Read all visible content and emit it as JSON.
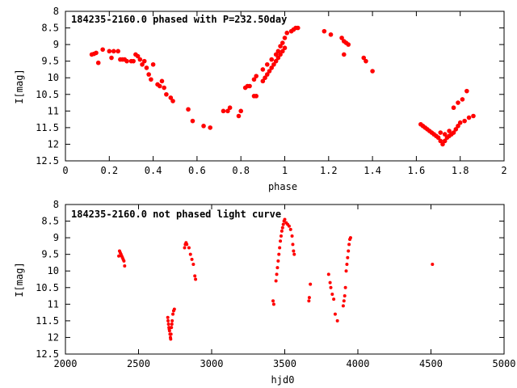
{
  "chart_data": [
    {
      "type": "scatter",
      "title": "184235-2160.0 phased with P=232.50day",
      "xlabel": "phase",
      "ylabel": "I[mag]",
      "xlim": [
        0,
        2
      ],
      "ylim": [
        12.5,
        8
      ],
      "y_inverted": true,
      "grid": false,
      "color": "#ff0000",
      "x_ticks": [
        "0",
        "0.2",
        "0.4",
        "0.6",
        "0.8",
        "1",
        "1.2",
        "1.4",
        "1.6",
        "1.8",
        "2"
      ],
      "y_ticks": [
        "8",
        "8.5",
        "9",
        "9.5",
        "10",
        "10.5",
        "11",
        "11.5",
        "12",
        "12.5"
      ],
      "points": [
        [
          0.12,
          9.3
        ],
        [
          0.13,
          9.28
        ],
        [
          0.14,
          9.25
        ],
        [
          0.15,
          9.55
        ],
        [
          0.17,
          9.15
        ],
        [
          0.2,
          9.2
        ],
        [
          0.21,
          9.4
        ],
        [
          0.22,
          9.2
        ],
        [
          0.24,
          9.2
        ],
        [
          0.25,
          9.45
        ],
        [
          0.26,
          9.45
        ],
        [
          0.27,
          9.45
        ],
        [
          0.28,
          9.5
        ],
        [
          0.3,
          9.5
        ],
        [
          0.31,
          9.5
        ],
        [
          0.32,
          9.3
        ],
        [
          0.33,
          9.35
        ],
        [
          0.34,
          9.45
        ],
        [
          0.35,
          9.6
        ],
        [
          0.36,
          9.5
        ],
        [
          0.37,
          9.7
        ],
        [
          0.38,
          9.9
        ],
        [
          0.39,
          10.05
        ],
        [
          0.4,
          9.6
        ],
        [
          0.42,
          10.2
        ],
        [
          0.43,
          10.25
        ],
        [
          0.44,
          10.1
        ],
        [
          0.45,
          10.3
        ],
        [
          0.46,
          10.5
        ],
        [
          0.48,
          10.6
        ],
        [
          0.49,
          10.7
        ],
        [
          0.56,
          10.95
        ],
        [
          0.58,
          11.3
        ],
        [
          0.63,
          11.45
        ],
        [
          0.66,
          11.5
        ],
        [
          0.72,
          11.0
        ],
        [
          0.74,
          11.0
        ],
        [
          0.75,
          10.9
        ],
        [
          0.79,
          11.15
        ],
        [
          0.8,
          11.0
        ],
        [
          0.82,
          10.3
        ],
        [
          0.83,
          10.25
        ],
        [
          0.84,
          10.25
        ],
        [
          0.86,
          10.05
        ],
        [
          0.87,
          9.95
        ],
        [
          0.86,
          10.55
        ],
        [
          0.87,
          10.55
        ],
        [
          0.9,
          10.1
        ],
        [
          0.91,
          10.0
        ],
        [
          0.92,
          9.9
        ],
        [
          0.93,
          9.8
        ],
        [
          0.94,
          9.7
        ],
        [
          0.95,
          9.6
        ],
        [
          0.96,
          9.5
        ],
        [
          0.97,
          9.4
        ],
        [
          0.98,
          9.3
        ],
        [
          0.99,
          9.2
        ],
        [
          1.0,
          9.1
        ],
        [
          0.9,
          9.75
        ],
        [
          0.92,
          9.6
        ],
        [
          0.94,
          9.45
        ],
        [
          0.96,
          9.3
        ],
        [
          0.97,
          9.2
        ],
        [
          0.98,
          9.05
        ],
        [
          0.99,
          8.95
        ],
        [
          1.0,
          8.8
        ],
        [
          1.01,
          8.65
        ],
        [
          1.03,
          8.6
        ],
        [
          1.04,
          8.55
        ],
        [
          1.05,
          8.5
        ],
        [
          1.06,
          8.5
        ],
        [
          1.18,
          8.6
        ],
        [
          1.21,
          8.7
        ],
        [
          1.26,
          8.8
        ],
        [
          1.27,
          8.9
        ],
        [
          1.28,
          8.95
        ],
        [
          1.29,
          9.0
        ],
        [
          1.27,
          9.3
        ],
        [
          1.36,
          9.4
        ],
        [
          1.37,
          9.5
        ],
        [
          1.4,
          9.8
        ],
        [
          1.62,
          11.4
        ],
        [
          1.63,
          11.45
        ],
        [
          1.64,
          11.5
        ],
        [
          1.65,
          11.55
        ],
        [
          1.66,
          11.6
        ],
        [
          1.67,
          11.65
        ],
        [
          1.68,
          11.7
        ],
        [
          1.69,
          11.75
        ],
        [
          1.7,
          11.8
        ],
        [
          1.71,
          11.9
        ],
        [
          1.72,
          12.0
        ],
        [
          1.73,
          11.9
        ],
        [
          1.74,
          11.8
        ],
        [
          1.75,
          11.75
        ],
        [
          1.76,
          11.7
        ],
        [
          1.77,
          11.65
        ],
        [
          1.78,
          11.55
        ],
        [
          1.79,
          11.45
        ],
        [
          1.8,
          11.35
        ],
        [
          1.82,
          11.3
        ],
        [
          1.84,
          11.2
        ],
        [
          1.86,
          11.15
        ],
        [
          1.77,
          10.9
        ],
        [
          1.79,
          10.75
        ],
        [
          1.81,
          10.65
        ],
        [
          1.83,
          10.4
        ],
        [
          1.71,
          11.65
        ],
        [
          1.73,
          11.7
        ],
        [
          1.75,
          11.6
        ]
      ]
    },
    {
      "type": "scatter",
      "title": "184235-2160.0 not phased light curve",
      "xlabel": "hjd0",
      "ylabel": "I[mag]",
      "xlim": [
        2000,
        5000
      ],
      "ylim": [
        12.5,
        8
      ],
      "y_inverted": true,
      "grid": false,
      "color": "#ff0000",
      "x_ticks": [
        "2000",
        "2500",
        "3000",
        "3500",
        "4000",
        "4500",
        "5000"
      ],
      "y_ticks": [
        "8",
        "8.5",
        "9",
        "9.5",
        "10",
        "10.5",
        "11",
        "11.5",
        "12",
        "12.5"
      ],
      "points": [
        [
          2370,
          9.4
        ],
        [
          2375,
          9.45
        ],
        [
          2380,
          9.5
        ],
        [
          2385,
          9.55
        ],
        [
          2390,
          9.6
        ],
        [
          2395,
          9.65
        ],
        [
          2400,
          9.7
        ],
        [
          2405,
          9.85
        ],
        [
          2365,
          9.55
        ],
        [
          2700,
          11.4
        ],
        [
          2702,
          11.5
        ],
        [
          2705,
          11.6
        ],
        [
          2708,
          11.7
        ],
        [
          2710,
          11.75
        ],
        [
          2712,
          11.8
        ],
        [
          2715,
          11.9
        ],
        [
          2718,
          12.0
        ],
        [
          2720,
          12.05
        ],
        [
          2722,
          11.9
        ],
        [
          2725,
          11.7
        ],
        [
          2728,
          11.6
        ],
        [
          2730,
          11.5
        ],
        [
          2735,
          11.3
        ],
        [
          2740,
          11.2
        ],
        [
          2745,
          11.15
        ],
        [
          2815,
          9.3
        ],
        [
          2820,
          9.2
        ],
        [
          2825,
          9.15
        ],
        [
          2830,
          9.2
        ],
        [
          2845,
          9.3
        ],
        [
          2855,
          9.5
        ],
        [
          2865,
          9.65
        ],
        [
          2875,
          9.8
        ],
        [
          2885,
          10.15
        ],
        [
          2890,
          10.25
        ],
        [
          3420,
          10.9
        ],
        [
          3425,
          11.0
        ],
        [
          3440,
          10.3
        ],
        [
          3445,
          10.1
        ],
        [
          3450,
          9.9
        ],
        [
          3455,
          9.7
        ],
        [
          3460,
          9.5
        ],
        [
          3465,
          9.3
        ],
        [
          3470,
          9.1
        ],
        [
          3475,
          8.95
        ],
        [
          3480,
          8.8
        ],
        [
          3485,
          8.7
        ],
        [
          3490,
          8.6
        ],
        [
          3495,
          8.5
        ],
        [
          3500,
          8.45
        ],
        [
          3510,
          8.55
        ],
        [
          3520,
          8.6
        ],
        [
          3530,
          8.65
        ],
        [
          3540,
          8.75
        ],
        [
          3550,
          8.95
        ],
        [
          3555,
          9.2
        ],
        [
          3560,
          9.4
        ],
        [
          3565,
          9.5
        ],
        [
          3665,
          10.9
        ],
        [
          3668,
          10.8
        ],
        [
          3675,
          10.4
        ],
        [
          3800,
          10.1
        ],
        [
          3810,
          10.35
        ],
        [
          3815,
          10.5
        ],
        [
          3825,
          10.7
        ],
        [
          3835,
          10.85
        ],
        [
          3845,
          11.3
        ],
        [
          3860,
          11.5
        ],
        [
          3900,
          11.05
        ],
        [
          3905,
          10.9
        ],
        [
          3910,
          10.75
        ],
        [
          3915,
          10.5
        ],
        [
          3920,
          10.0
        ],
        [
          3925,
          9.8
        ],
        [
          3930,
          9.6
        ],
        [
          3935,
          9.4
        ],
        [
          3940,
          9.2
        ],
        [
          3945,
          9.05
        ],
        [
          3950,
          9.0
        ],
        [
          4510,
          9.8
        ]
      ]
    }
  ]
}
